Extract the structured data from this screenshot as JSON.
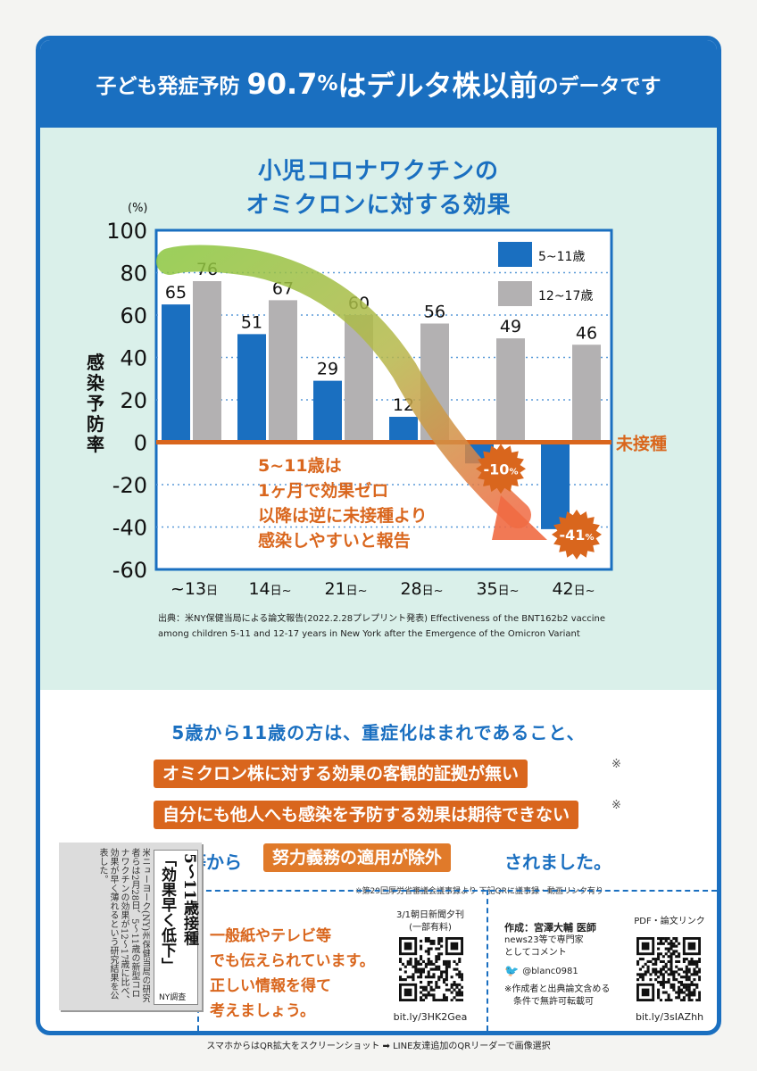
{
  "header": {
    "seg1": "子ども発症予防",
    "seg2": "90.7",
    "seg3": "%",
    "seg4": "はデルタ株以前",
    "seg5": "のデータです"
  },
  "chart_title": {
    "line1": "小児コロナワクチンの",
    "line2": "オミクロンに対する効果"
  },
  "chart_data": {
    "type": "bar",
    "categories": [
      "~13日",
      "14日~",
      "21日~",
      "28日~",
      "35日~",
      "42日~"
    ],
    "series": [
      {
        "name": "5~11歳",
        "values": [
          65,
          51,
          29,
          12,
          -10,
          -41
        ],
        "color": "#1a6fc0"
      },
      {
        "name": "12~17歳",
        "values": [
          76,
          67,
          60,
          56,
          49,
          46
        ],
        "color": "#b3b1b2"
      }
    ],
    "ylim": [
      -60,
      100
    ],
    "yticks": [
      "100",
      "80",
      "60",
      "40",
      "20",
      "0",
      "-20",
      "-40",
      "-60"
    ],
    "yunit": "(%)",
    "ylabel": "感染予防率",
    "baseline_label": "未接種",
    "neg_badge_labels": [
      "-10",
      "-41"
    ],
    "neg_badge_unit": "%",
    "annotation": [
      "5~11歳は",
      "1ヶ月で効果ゼロ",
      "以降は逆に未接種より",
      "感染しやすいと報告"
    ],
    "cat_parts": [
      [
        "~13",
        "日"
      ],
      [
        "14",
        "日~"
      ],
      [
        "21",
        "日~"
      ],
      [
        "28",
        "日~"
      ],
      [
        "35",
        "日~"
      ],
      [
        "42",
        "日~"
      ]
    ],
    "legend_position": "top-right",
    "grid": true
  },
  "source": {
    "line1": "出典：米NY保健当局による論文報告(2022.2.28プレプリント発表) Effectiveness of the BNT162b2 vaccine",
    "line2": "among children 5-11 and 12-17 years in New York after the Emergence of the Omicron Variant"
  },
  "message": {
    "line1": "5歳から11歳の方は、重症化はまれであること、",
    "pill1": "オミクロン株に対する効果の客観的証拠が無い",
    "pill2": "自分にも他人へも感染を予防する効果は期待できない",
    "asterisk": "※",
    "line4_pre": "こと等から",
    "pill3": "努力義務の適用が除外",
    "line4_post": "されました。",
    "note": "※第29回厚労省審議会議事録より 下記QRに議事録・動画リンク有り"
  },
  "bottom": {
    "clip_headline1": "5〜11歳接種",
    "clip_headline2": "「効果早く低下」",
    "clip_sub": "NY調査",
    "clip_body": "米ニューヨーク(NY)州保健当局の研究者らは2月28日、5〜11歳の新型コロナワクチンの効果が12〜17歳に比べ、効果が早く薄れるという研究結果を公表した。",
    "msg": [
      "一般紙やテレビ等",
      "でも伝えられています。",
      "正しい情報を得て",
      "考えましょう。"
    ],
    "qr1_caption": [
      "3/1朝日新聞夕刊",
      "(一部有料)"
    ],
    "qr1_link": "bit.ly/3HK2Gea",
    "author": "作成：宮澤大輔 医師",
    "author_sub": [
      "news23等で専門家",
      "としてコメント"
    ],
    "twitter": "@blanc0981",
    "author_note": [
      "※作成者と出典論文含める",
      "条件で無許可転載可"
    ],
    "qr2_caption": "PDF・論文リンク",
    "qr2_link": "bit.ly/3sIAZhh"
  },
  "footer": "スマホからはQR拡大をスクリーンショット ➡ LINE友達追加のQRリーダーで画像選択"
}
